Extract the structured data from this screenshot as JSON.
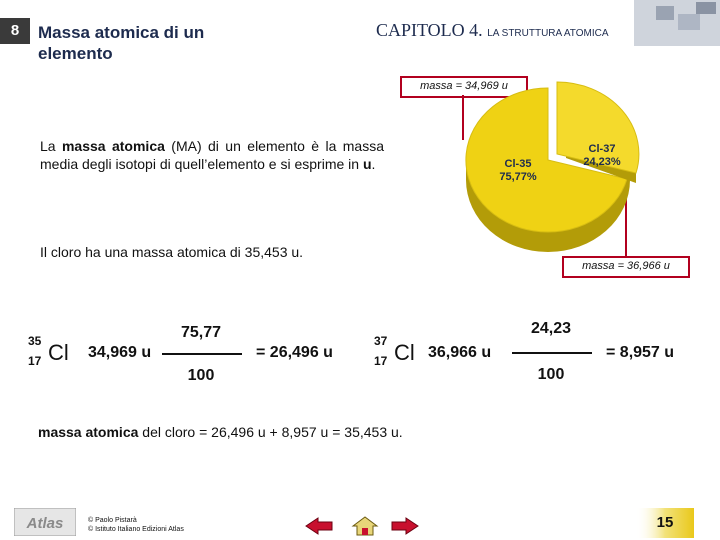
{
  "header": {
    "slide_number": "8",
    "title": "Massa atomica di un elemento",
    "chapter_main": "CAPITOLO 4.",
    "chapter_sub": "LA STRUTTURA ATOMICA"
  },
  "callouts": {
    "top": "massa = 34,969 u",
    "bottom": "massa = 36,966 u"
  },
  "pie": {
    "slices": [
      {
        "label": "Cl-35",
        "percent": "75,77%",
        "fraction": 0.7577,
        "color": "#efd214"
      },
      {
        "label": "Cl-37",
        "percent": "24,23%",
        "fraction": 0.2423,
        "color": "#efd214"
      }
    ]
  },
  "body": {
    "p1_pre": "La ",
    "p1_term": "massa atomica",
    "p1_mid": " (MA) di un elemento è la massa media degli isotopi di quell’elemento e si esprime in ",
    "p1_unit": "u",
    "p1_end": ".",
    "p2": "Il cloro ha una massa atomica di 35,453 u."
  },
  "equation1": {
    "mass_number": "35",
    "atomic_number": "17",
    "symbol": "Cl",
    "mass": "34,969 u",
    "numerator": "75,77",
    "denominator": "100",
    "result": "= 26,496 u"
  },
  "equation2": {
    "mass_number": "37",
    "atomic_number": "17",
    "symbol": "Cl",
    "mass": "36,966 u",
    "numerator": "24,23",
    "denominator": "100",
    "result": "= 8,957 u"
  },
  "result_line": {
    "bold": "massa atomica",
    "rest": " del cloro = 26,496 u + 8,957 u = 35,453 u."
  },
  "footer": {
    "logo_text": "Atlas",
    "credit_line1": "© Paolo Pistarà",
    "credit_line2": "© Istituto Italiano Edizioni Atlas",
    "page_number": "15"
  },
  "colors": {
    "accent_red": "#b2001f",
    "title_navy": "#1d2b4e",
    "pie_yellow": "#efd214"
  }
}
